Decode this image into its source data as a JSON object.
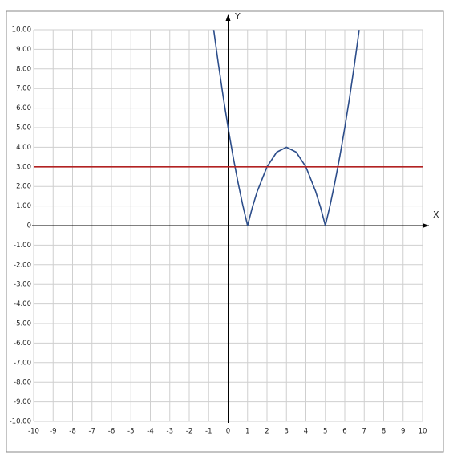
{
  "chart_data": {
    "type": "line",
    "x_label": "X",
    "y_label": "Y",
    "xlim": [
      -10,
      10
    ],
    "ylim": [
      -10,
      10
    ],
    "xticks": [
      -10,
      -9,
      -8,
      -7,
      -6,
      -5,
      -4,
      -3,
      -2,
      -1,
      0,
      1,
      2,
      3,
      4,
      5,
      6,
      7,
      8,
      9,
      10
    ],
    "yticks": [
      {
        "value": 10,
        "label": "10.00"
      },
      {
        "value": 9,
        "label": "9.00"
      },
      {
        "value": 8,
        "label": "8.00"
      },
      {
        "value": 7,
        "label": "7.00"
      },
      {
        "value": 6,
        "label": "6.00"
      },
      {
        "value": 5,
        "label": "5.00"
      },
      {
        "value": 4,
        "label": "4.00"
      },
      {
        "value": 3,
        "label": "3.00"
      },
      {
        "value": 2,
        "label": "2.00"
      },
      {
        "value": 1,
        "label": "1.00"
      },
      0,
      {
        "value": -1,
        "label": "-1.00"
      },
      {
        "value": -2,
        "label": "-2.00"
      },
      {
        "value": -3,
        "label": "-3.00"
      },
      {
        "value": -4,
        "label": "-4.00"
      },
      {
        "value": -5,
        "label": "-5.00"
      },
      {
        "value": -6,
        "label": "-6.00"
      },
      {
        "value": -7,
        "label": "-7.00"
      },
      {
        "value": -8,
        "label": "-8.00"
      },
      {
        "value": -9,
        "label": "-9.00"
      },
      {
        "value": -10,
        "label": "-10.00"
      }
    ],
    "grid": true,
    "series": [
      {
        "color": "#2c4d8a",
        "x": [
          -0.74,
          -0.5,
          -0.25,
          0,
          0.25,
          0.5,
          0.75,
          1,
          1.25,
          1.5,
          2,
          2.5,
          3,
          3.5,
          4,
          4.5,
          4.75,
          5,
          5.25,
          5.5,
          5.75,
          6,
          6.25,
          6.5,
          6.74
        ],
        "values": [
          9.99,
          8.25,
          6.56,
          5,
          3.56,
          2.25,
          1.06,
          0,
          0.94,
          1.75,
          3,
          3.75,
          4,
          3.75,
          3,
          1.75,
          0.94,
          0,
          1.06,
          2.25,
          3.56,
          5,
          6.56,
          8.25,
          9.99
        ]
      },
      {
        "color": "#b22222",
        "x": [
          -10,
          10
        ],
        "values": [
          3,
          3
        ]
      }
    ]
  }
}
